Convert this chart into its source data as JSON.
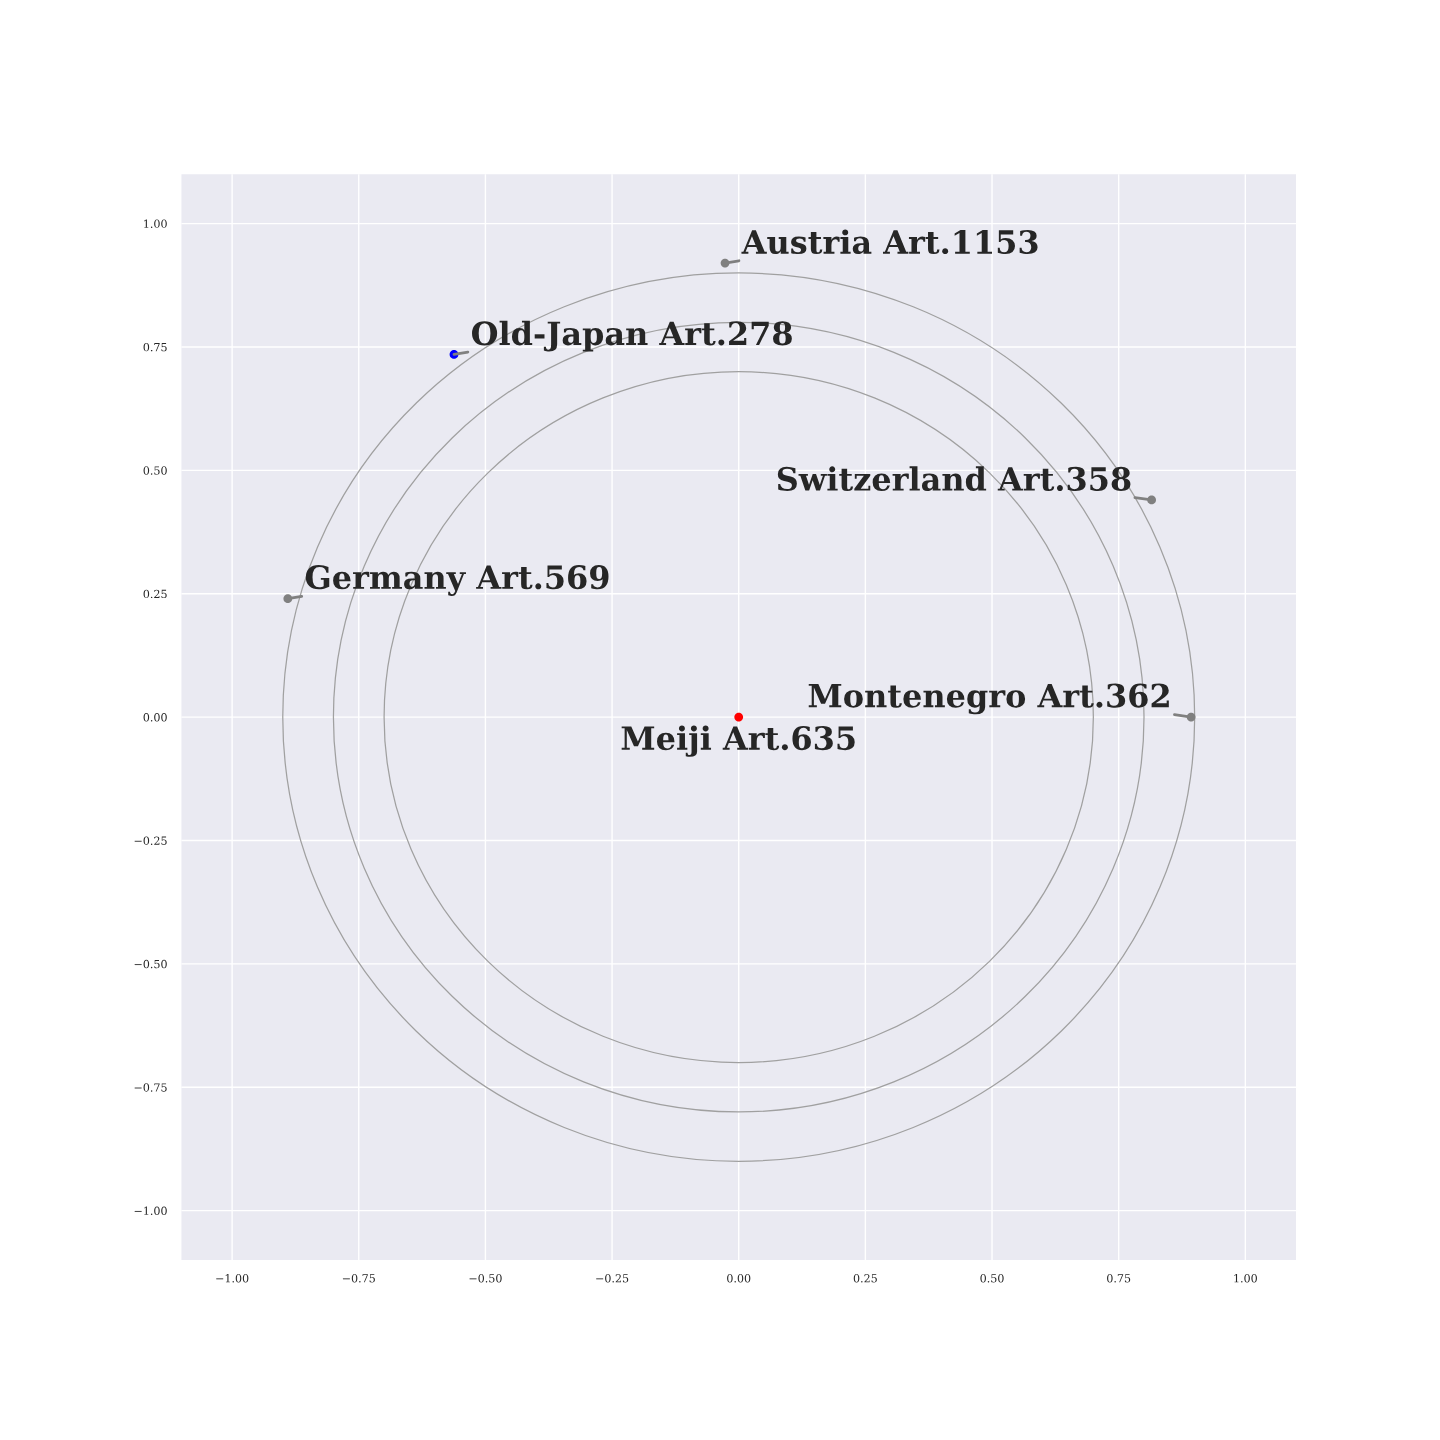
{
  "chart_data": {
    "type": "scatter",
    "xlim": [
      -1.1,
      1.1
    ],
    "ylim": [
      -1.1,
      1.1
    ],
    "xticks": [
      {
        "value": -1,
        "label": "−1.00"
      },
      {
        "value": -0.75,
        "label": "−0.75"
      },
      {
        "value": -0.5,
        "label": "−0.50"
      },
      {
        "value": -0.25,
        "label": "−0.25"
      },
      {
        "value": 0,
        "label": "0.00"
      },
      {
        "value": 0.25,
        "label": "0.25"
      },
      {
        "value": 0.5,
        "label": "0.50"
      },
      {
        "value": 0.75,
        "label": "0.75"
      },
      {
        "value": 1,
        "label": "1.00"
      }
    ],
    "yticks": [
      {
        "value": -1,
        "label": "−1.00"
      },
      {
        "value": -0.75,
        "label": "−0.75"
      },
      {
        "value": -0.5,
        "label": "−0.50"
      },
      {
        "value": -0.25,
        "label": "−0.25"
      },
      {
        "value": 0,
        "label": "0.00"
      },
      {
        "value": 0.25,
        "label": "0.25"
      },
      {
        "value": 0.5,
        "label": "0.50"
      },
      {
        "value": 0.75,
        "label": "0.75"
      },
      {
        "value": 1,
        "label": "1.00"
      }
    ],
    "grid": true,
    "legend": false,
    "series": [
      {
        "marker": "circle",
        "x": [
          0,
          -0.562,
          -0.027,
          0.815,
          -0.89,
          0.893
        ],
        "values": [
          0,
          0.735,
          0.92,
          0.44,
          0.24,
          0
        ],
        "colors": [
          "#ff0000",
          "#0000ff",
          "#808080",
          "#808080",
          "#808080",
          "#808080"
        ],
        "value_labels": [
          "Meiji Art.635",
          "Old-Japan Art.278",
          "Austria Art.1153",
          "Switzerland Art.358",
          "Germany Art.569",
          "Montenegro Art.362"
        ]
      }
    ]
  }
}
